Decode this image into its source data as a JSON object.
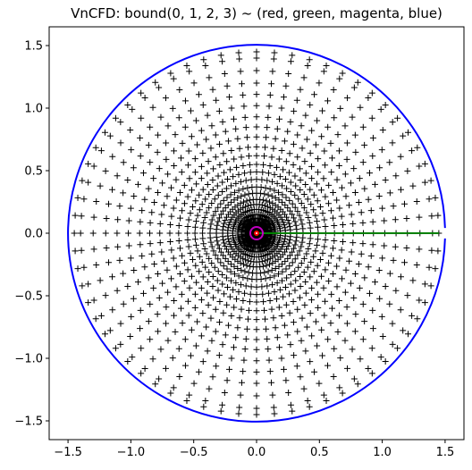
{
  "chart_data": {
    "type": "scatter",
    "title": "VnCFD: bound(0, 1, 2, 3) ~ (red, green, magenta, blue)",
    "xlabel": "",
    "ylabel": "",
    "xlim": [
      -1.65,
      1.65
    ],
    "ylim": [
      -1.65,
      1.65
    ],
    "x_ticks": [
      -1.5,
      -1.0,
      -0.5,
      0.0,
      0.5,
      1.0,
      1.5
    ],
    "x_tick_labels": [
      "−1.5",
      "−1.0",
      "−0.5",
      "0.0",
      "0.5",
      "1.0",
      "1.5"
    ],
    "y_ticks": [
      1.5,
      1.0,
      0.5,
      0.0,
      -0.5,
      -1.0,
      -1.5
    ],
    "y_tick_labels": [
      "1.5",
      "1.0",
      "0.5",
      "0.0",
      "−0.5",
      "−1.0",
      "−1.5"
    ],
    "grid": false,
    "aspect": "equal",
    "grid_points": {
      "marker": "+",
      "color": "#000000",
      "rings": [
        0.02,
        0.04,
        0.06,
        0.09,
        0.12,
        0.15,
        0.19,
        0.23,
        0.27,
        0.32,
        0.37,
        0.43,
        0.49,
        0.55,
        0.62,
        0.69,
        0.77,
        0.85,
        0.93,
        1.02,
        1.11,
        1.2,
        1.3,
        1.4,
        1.45
      ],
      "points_per_ring": 64
    },
    "series": [
      {
        "boundary": 0,
        "color": "#ff0000",
        "shape": "circle",
        "center": [
          0.0,
          0.0
        ],
        "radius": 0.006
      },
      {
        "boundary": 1,
        "color": "#008000",
        "shape": "segment",
        "start": [
          0.02,
          0.0
        ],
        "end": [
          1.45,
          0.0
        ]
      },
      {
        "boundary": 2,
        "color": "#bf00bf",
        "shape": "circle",
        "center": [
          0.0,
          0.0
        ],
        "radius": 0.05
      },
      {
        "boundary": 3,
        "color": "#0000ff",
        "shape": "arc",
        "center": [
          0.0,
          0.0
        ],
        "radius": 1.5,
        "gap_half_angle_deg": 1.6
      }
    ]
  }
}
